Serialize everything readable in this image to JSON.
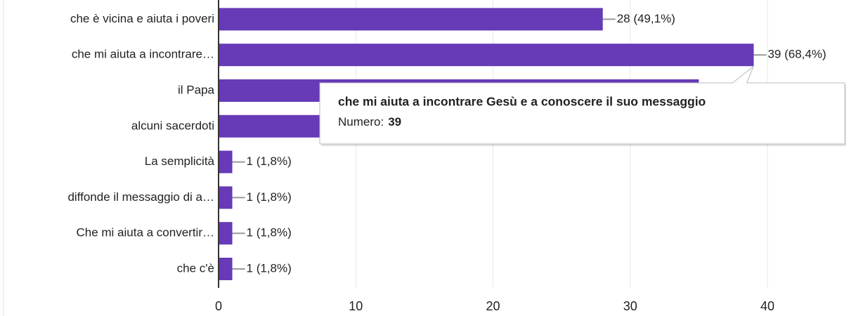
{
  "chart_data": {
    "type": "hbar",
    "categories": [
      "che è vicina e aiuta i poveri",
      "che mi aiuta a incontrare…",
      "il Papa",
      "alcuni sacerdoti",
      "La semplicità",
      "diffonde il messaggio di a…",
      "Che mi aiuta a convertir…",
      "che c'è"
    ],
    "values": [
      28,
      39,
      35,
      30,
      1,
      1,
      1,
      1
    ],
    "value_labels": [
      "28 (49,1%)",
      "39 (68,4%)",
      null,
      null,
      "1 (1,8%)",
      "1 (1,8%)",
      "1 (1,8%)",
      "1 (1,8%)"
    ],
    "color": "#673ab7",
    "xlim": [
      0,
      40
    ],
    "xticks": [
      0,
      10,
      20,
      30,
      40
    ],
    "grid": true,
    "tooltip": {
      "title": "che mi aiuta a incontrare Gesù e a conoscere il suo messaggio",
      "label": "Numero:",
      "index": 1
    }
  }
}
